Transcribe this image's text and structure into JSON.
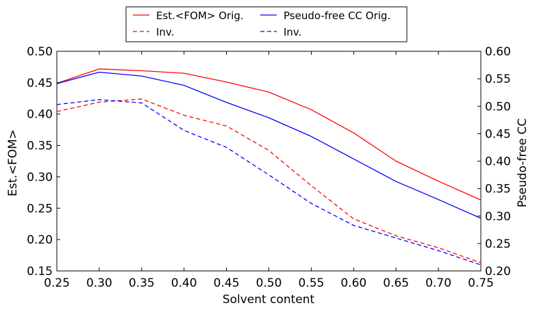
{
  "chart_data": {
    "type": "line",
    "title": "",
    "xlabel": "Solvent content",
    "ylabel_left": "Est.<FOM>",
    "ylabel_right": "Pseudo-free CC",
    "xlim": [
      0.25,
      0.75
    ],
    "ylim_left": [
      0.15,
      0.5
    ],
    "ylim_right": [
      0.2,
      0.6
    ],
    "x_ticks": [
      "0.25",
      "0.30",
      "0.35",
      "0.40",
      "0.45",
      "0.50",
      "0.55",
      "0.60",
      "0.65",
      "0.70",
      "0.75"
    ],
    "y_left_ticks": [
      "0.15",
      "0.20",
      "0.25",
      "0.30",
      "0.35",
      "0.40",
      "0.45",
      "0.50"
    ],
    "y_right_ticks": [
      "0.20",
      "0.25",
      "0.30",
      "0.35",
      "0.40",
      "0.45",
      "0.50",
      "0.55",
      "0.60"
    ],
    "grid": false,
    "legend_position": "above-plot",
    "x": [
      0.25,
      0.3,
      0.35,
      0.4,
      0.45,
      0.5,
      0.55,
      0.6,
      0.65,
      0.7,
      0.75
    ],
    "series": [
      {
        "name": "Est.<FOM> Orig.",
        "axis": "left",
        "color": "#ff0000",
        "style": "solid",
        "values": [
          0.449,
          0.472,
          0.469,
          0.465,
          0.451,
          0.435,
          0.407,
          0.37,
          0.325,
          0.293,
          0.263
        ]
      },
      {
        "name": "Inv.",
        "axis": "left",
        "color": "#ff0000",
        "style": "dashed",
        "values": [
          0.404,
          0.419,
          0.424,
          0.398,
          0.381,
          0.342,
          0.286,
          0.233,
          0.206,
          0.187,
          0.163
        ]
      },
      {
        "name": "Pseudo-free CC Orig.",
        "axis": "right",
        "color": "#0000ff",
        "style": "solid",
        "values": [
          0.541,
          0.562,
          0.555,
          0.538,
          0.507,
          0.479,
          0.445,
          0.404,
          0.363,
          0.33,
          0.296
        ]
      },
      {
        "name": "Inv.",
        "axis": "right",
        "color": "#0000ff",
        "style": "dashed",
        "values": [
          0.503,
          0.512,
          0.506,
          0.456,
          0.425,
          0.375,
          0.323,
          0.283,
          0.26,
          0.237,
          0.211
        ]
      }
    ]
  }
}
